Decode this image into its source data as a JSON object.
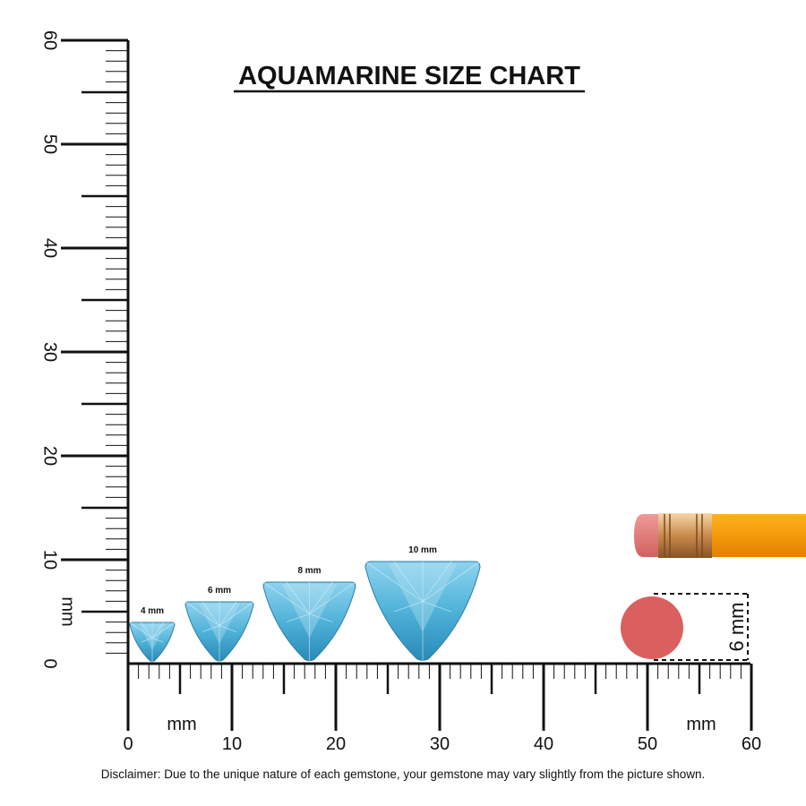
{
  "title": "AQUAMARINE SIZE CHART",
  "vertical_ruler": {
    "labels": [
      "0",
      "10",
      "20",
      "30",
      "40",
      "50",
      "60"
    ],
    "unit": "mm"
  },
  "horizontal_ruler": {
    "labels": [
      "0",
      "10",
      "20",
      "30",
      "40",
      "50",
      "60"
    ],
    "units": [
      "mm",
      "mm"
    ]
  },
  "gems": [
    {
      "label": "4 mm"
    },
    {
      "label": "6 mm"
    },
    {
      "label": "8 mm"
    },
    {
      "label": "10 mm"
    }
  ],
  "pencil_eraser": {
    "label": "6 mm"
  },
  "disclaimer": "Disclaimer: Due to the unique nature of each gemstone, your gemstone may vary slightly from the picture shown."
}
